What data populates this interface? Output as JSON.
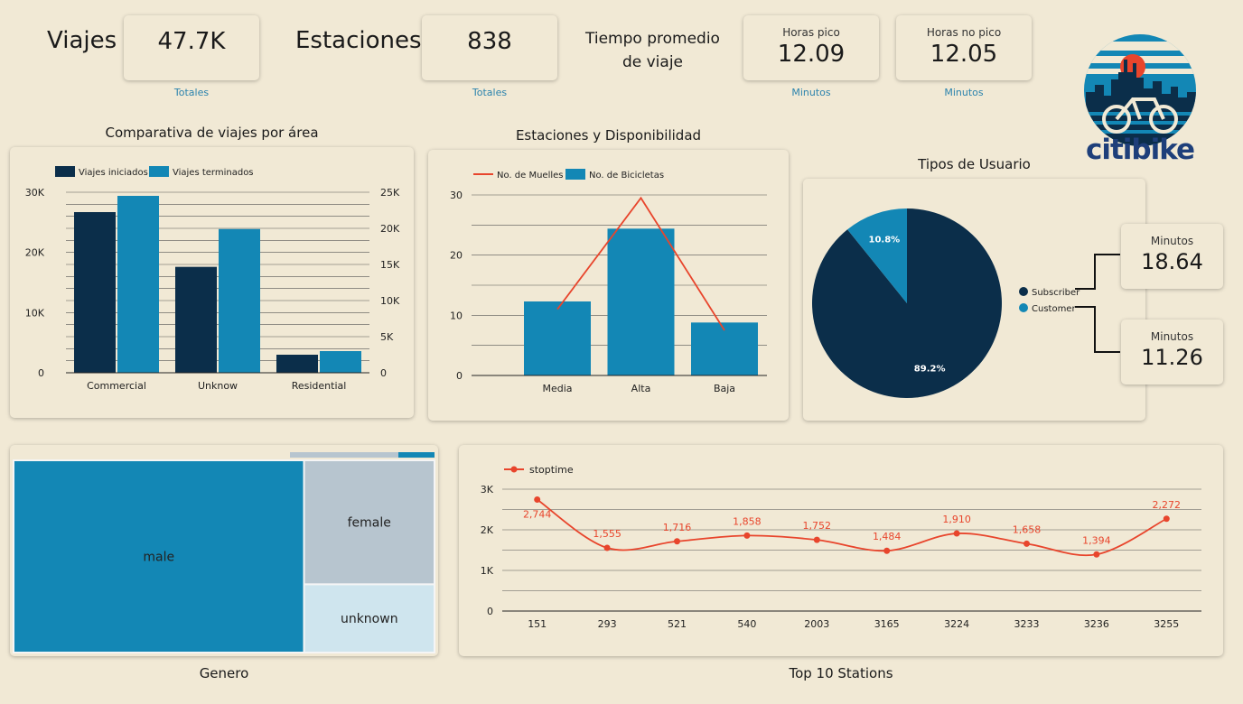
{
  "colors": {
    "dark": "#0b2e4a",
    "blue": "#1387b5",
    "red": "#e8452c",
    "bg": "#f1e9d5",
    "accent_text": "#2b83ad"
  },
  "kpis": {
    "viajes_label": "Viajes",
    "viajes_value": "47.7K",
    "viajes_sub": "Totales",
    "estaciones_label": "Estaciones",
    "estaciones_value": "838",
    "estaciones_sub": "Totales",
    "tiempo_label_1": "Tiempo promedio",
    "tiempo_label_2": "de viaje",
    "pico_title": "Horas pico",
    "pico_value": "12.09",
    "pico_sub": "Minutos",
    "nopico_title": "Horas no pico",
    "nopico_value": "12.05",
    "nopico_sub": "Minutos"
  },
  "logo": {
    "text_citi": "citi",
    "text_bike": "bike"
  },
  "user_minutes": {
    "subscriber_title": "Minutos",
    "subscriber_value": "18.64",
    "customer_title": "Minutos",
    "customer_value": "11.26"
  },
  "chart_data": [
    {
      "id": "area",
      "type": "bar",
      "title": "Comparativa de viajes por área",
      "categories": [
        "Commercial",
        "Unknow",
        "Residential"
      ],
      "series": [
        {
          "name": "Viajes iniciados",
          "values": [
            26700,
            17600,
            3000
          ],
          "axis": "left"
        },
        {
          "name": "Viajes terminados",
          "values": [
            24500,
            19900,
            3000
          ],
          "axis": "right"
        }
      ],
      "ylim": [
        0,
        30000
      ],
      "yticks": [
        "0",
        "10K",
        "20K",
        "30K"
      ],
      "y2lim": [
        0,
        25000
      ],
      "y2ticks": [
        "0",
        "5K",
        "10K",
        "15K",
        "20K",
        "25K"
      ],
      "legend": "top-left"
    },
    {
      "id": "estaciones",
      "type": "bar",
      "title": "Estaciones y Disponibilidad",
      "categories": [
        "Media",
        "Alta",
        "Baja"
      ],
      "series": [
        {
          "name": "No. de Muelles",
          "kind": "line",
          "values": [
            11,
            29.5,
            7.5
          ]
        },
        {
          "name": "No. de Bicicletas",
          "kind": "bar",
          "values": [
            12.3,
            24.4,
            8.8
          ]
        }
      ],
      "ylim": [
        0,
        30
      ],
      "yticks": [
        "0",
        "10",
        "20",
        "30"
      ],
      "legend": "top-left"
    },
    {
      "id": "usuarios",
      "type": "pie",
      "title": "Tipos de Usuario",
      "labels": [
        "Subscriber",
        "Customer"
      ],
      "values": [
        89.2,
        10.8
      ],
      "value_labels": [
        "89.2%",
        "10.8%"
      ],
      "legend": "right"
    },
    {
      "id": "genero",
      "type": "heatmap",
      "title": "Genero",
      "labels": [
        "male",
        "female",
        "unknown"
      ],
      "values": [
        69,
        20,
        11
      ]
    },
    {
      "id": "stations",
      "type": "line",
      "title": "Top 10 Stations",
      "categories": [
        "151",
        "293",
        "521",
        "540",
        "2003",
        "3165",
        "3224",
        "3233",
        "3236",
        "3255"
      ],
      "series": [
        {
          "name": "stoptime",
          "values": [
            2744,
            1555,
            1716,
            1858,
            1752,
            1484,
            1910,
            1658,
            1394,
            2272
          ],
          "labels": [
            "2,744",
            "1,555",
            "1,716",
            "1,858",
            "1,752",
            "1,484",
            "1,910",
            "1,658",
            "1,394",
            "2,272"
          ]
        }
      ],
      "ylim": [
        0,
        3000
      ],
      "yticks": [
        "0",
        "1K",
        "2K",
        "3K"
      ],
      "legend": "top-left"
    }
  ]
}
